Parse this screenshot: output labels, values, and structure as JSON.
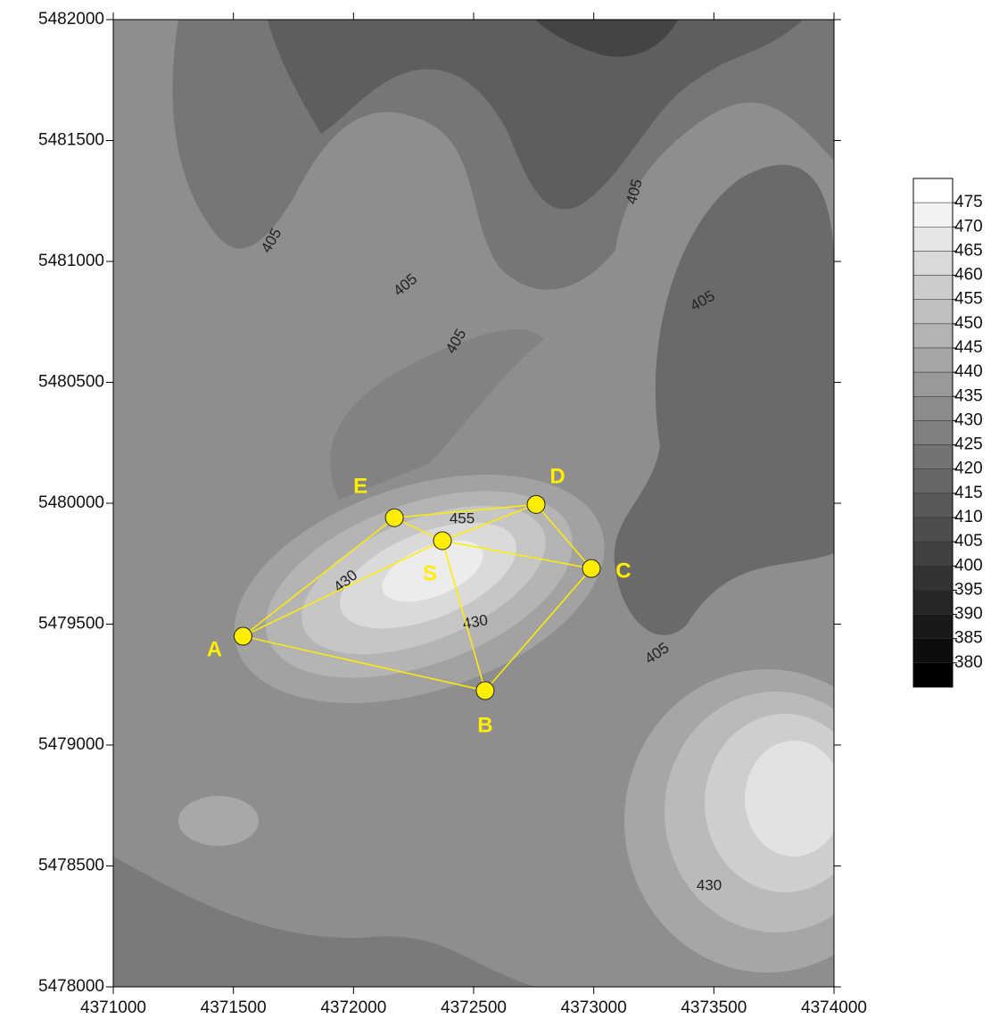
{
  "chart_data": {
    "type": "map",
    "xlim": [
      4371000,
      4374000
    ],
    "xticks": [
      4371000,
      4371500,
      4372000,
      4372500,
      4373000,
      4373500,
      4374000
    ],
    "ylim": [
      5478000,
      5482000
    ],
    "yticks": [
      5478000,
      5478500,
      5479000,
      5479500,
      5480000,
      5480500,
      5481000,
      5481500,
      5482000
    ],
    "points": [
      {
        "label": "A",
        "x": 4371540,
        "y": 5479450
      },
      {
        "label": "B",
        "x": 4372548,
        "y": 5479225
      },
      {
        "label": "C",
        "x": 4372990,
        "y": 5479730
      },
      {
        "label": "D",
        "x": 4372760,
        "y": 5479995
      },
      {
        "label": "E",
        "x": 4372170,
        "y": 5479940
      },
      {
        "label": "S",
        "x": 4372370,
        "y": 5479845
      }
    ],
    "edges": [
      [
        0,
        1
      ],
      [
        1,
        2
      ],
      [
        2,
        3
      ],
      [
        3,
        4
      ],
      [
        4,
        0
      ],
      [
        5,
        0
      ],
      [
        5,
        1
      ],
      [
        5,
        2
      ],
      [
        5,
        3
      ],
      [
        5,
        4
      ]
    ],
    "point_color": "#ffee00",
    "colorbar": {
      "clim": [
        375,
        480
      ],
      "levels": [
        475,
        470,
        465,
        460,
        455,
        450,
        445,
        440,
        435,
        430,
        425,
        420,
        415,
        410,
        405,
        400,
        395,
        390,
        385,
        380
      ]
    },
    "contour_labels": [
      "405",
      "405",
      "405",
      "405",
      "405",
      "405",
      "455",
      "430",
      "430",
      "430"
    ]
  }
}
